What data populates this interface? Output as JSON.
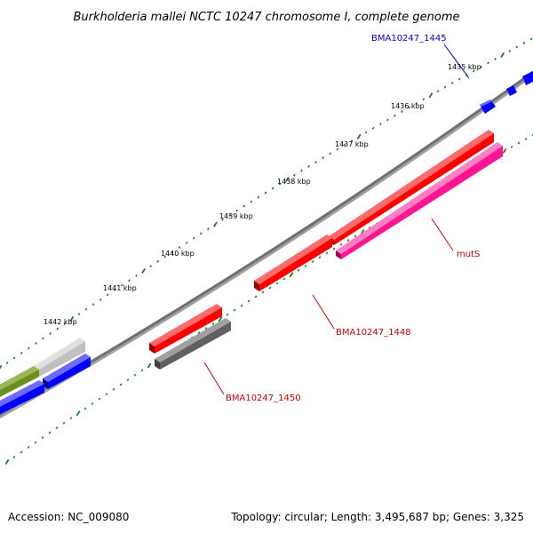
{
  "title": "Burkholderia mallei NCTC 10247 chromosome I, complete genome",
  "accession": "Accession: NC_009080",
  "summary": "Topology: circular; Length: 3,495,687 bp; Genes: 3,325",
  "kbp_labels": [
    "1435 kbp",
    "1436 kbp",
    "1437 kbp",
    "1438 kbp",
    "1439 kbp",
    "1440 kbp",
    "1441 kbp",
    "1442 kbp"
  ],
  "gene_labels": [
    "BMA10247_1445",
    "mutS",
    "BMA10247_1448",
    "BMA10247_1450"
  ],
  "colors": {
    "backbone": "#808080",
    "tick": "#1e7a1e",
    "forward_cds": "#ff0000",
    "reverse_cds": "#0000ff",
    "pink_gene": "#ff1493",
    "gray_gene": "#696969",
    "olive_gene": "#6b8e23",
    "silver_gene": "#c0c0c0",
    "label_blue": "#0000cc",
    "label_red": "#cc0000"
  }
}
